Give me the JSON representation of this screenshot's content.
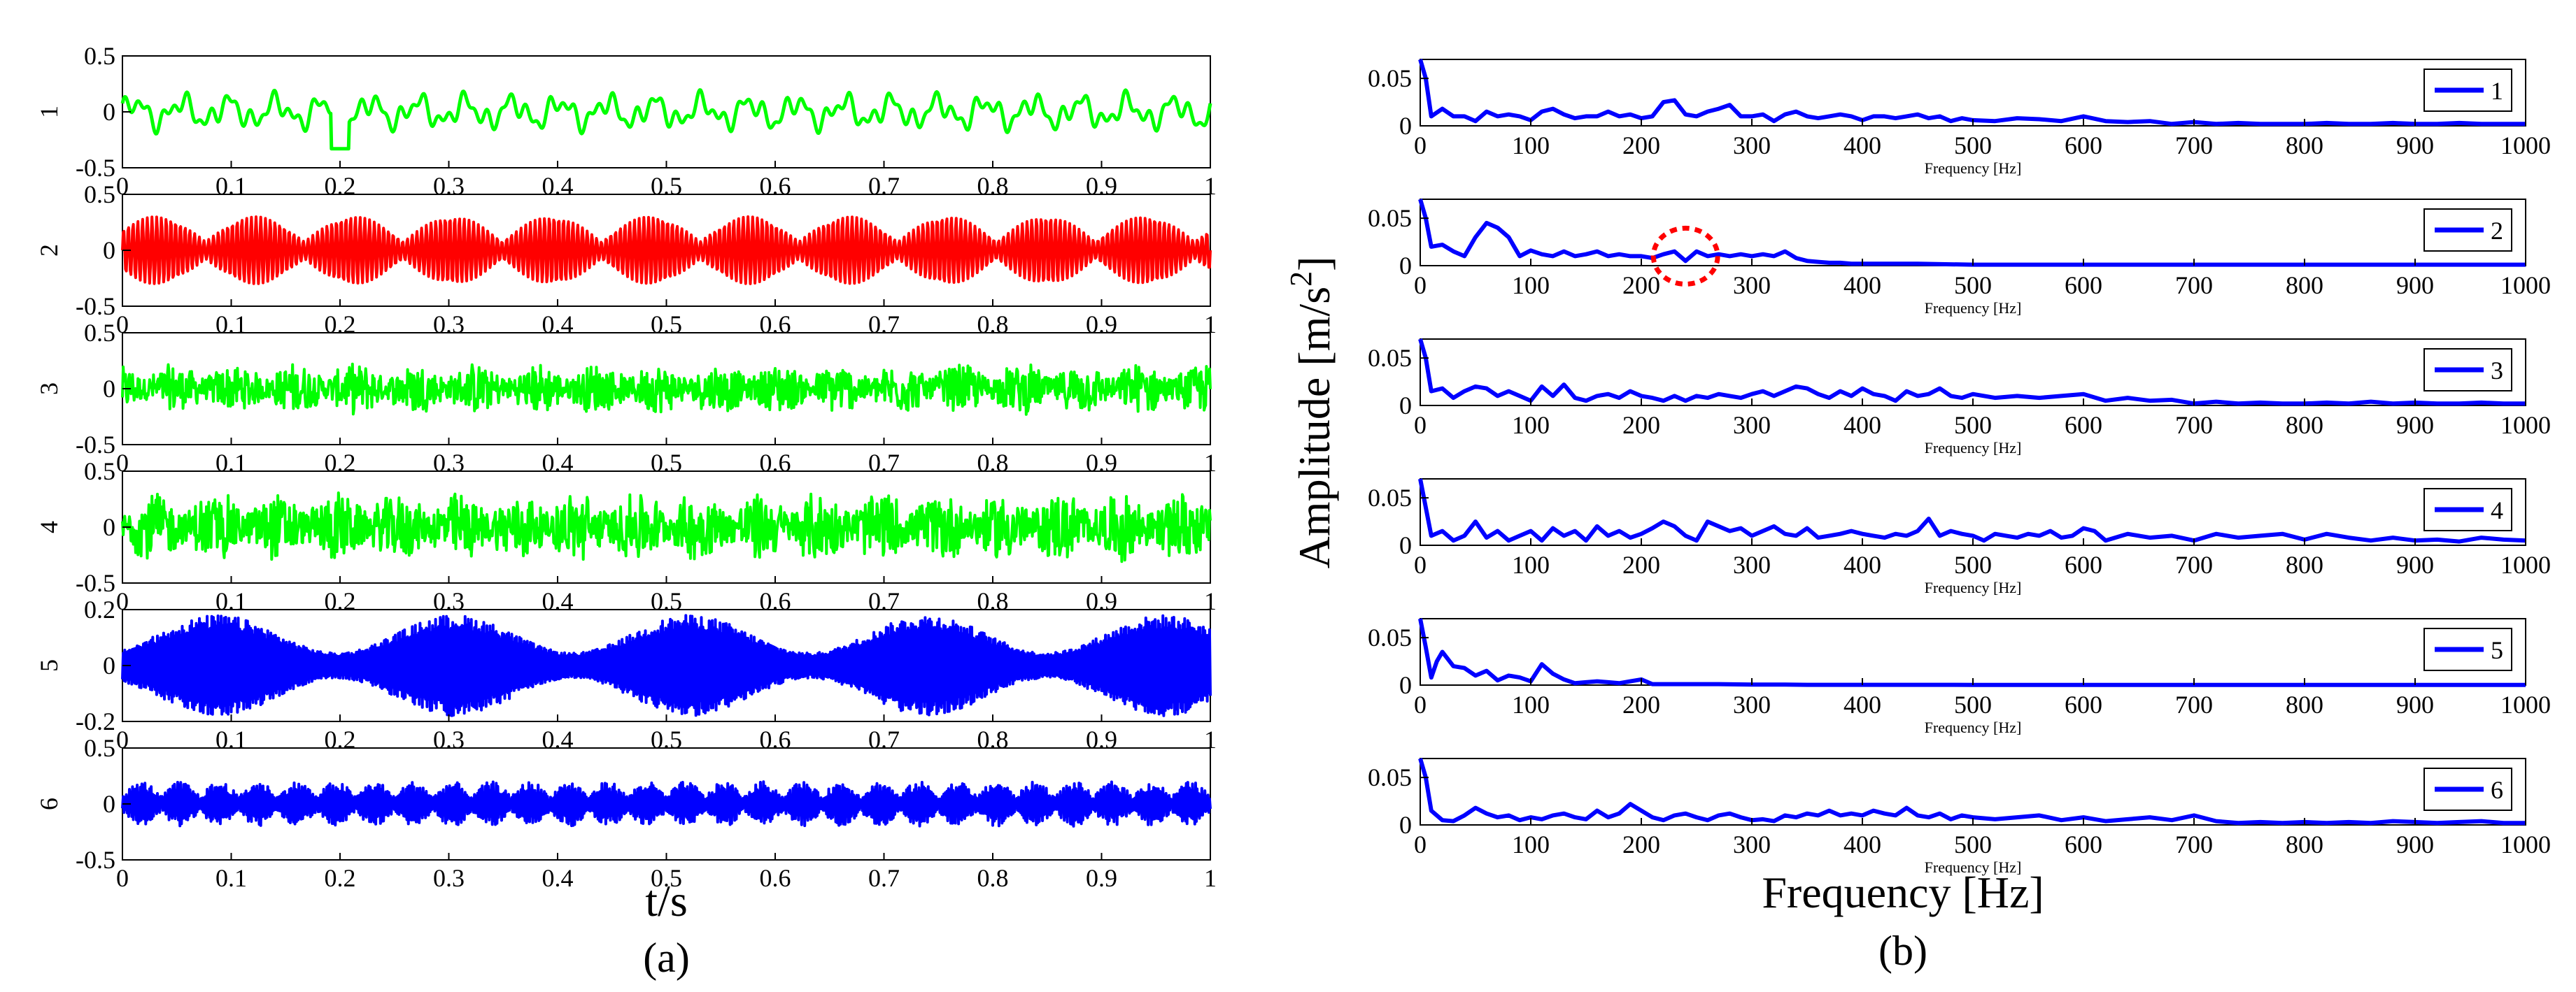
{
  "chart_data": [
    {
      "id": "a",
      "type": "line",
      "caption": "(a)",
      "xlabel": "t/s",
      "xlim": [
        0,
        1
      ],
      "x_ticks": [
        "0",
        "0.1",
        "0.2",
        "0.3",
        "0.4",
        "0.5",
        "0.6",
        "0.7",
        "0.8",
        "0.9",
        "1"
      ],
      "signals": [
        {
          "name": "1",
          "color": "#00ff00",
          "ylim": [
            -0.5,
            0.5
          ],
          "y_ticks": [
            "0.5",
            "0",
            "-0.5"
          ],
          "kind": "lowfreq",
          "amplitude": 0.2
        },
        {
          "name": "2",
          "color": "#ff0000",
          "ylim": [
            -0.5,
            0.5
          ],
          "y_ticks": [
            "0.5",
            "0",
            "-0.5"
          ],
          "kind": "beating",
          "amplitude": 0.3
        },
        {
          "name": "3",
          "color": "#00ff00",
          "ylim": [
            -0.5,
            0.5
          ],
          "y_ticks": [
            "0.5",
            "0",
            "-0.5"
          ],
          "kind": "noise",
          "amplitude": 0.24
        },
        {
          "name": "4",
          "color": "#00ff00",
          "ylim": [
            -0.5,
            0.5
          ],
          "y_ticks": [
            "0.5",
            "0",
            "-0.5"
          ],
          "kind": "noise",
          "amplitude": 0.34
        },
        {
          "name": "5",
          "color": "#0000ff",
          "ylim": [
            -0.2,
            0.2
          ],
          "y_ticks": [
            "0.2",
            "0",
            "-0.2"
          ],
          "kind": "envelope",
          "amplitude": 0.18
        },
        {
          "name": "6",
          "color": "#0000ff",
          "ylim": [
            -0.5,
            0.5
          ],
          "y_ticks": [
            "0.5",
            "0",
            "-0.5"
          ],
          "kind": "bursts",
          "amplitude": 0.2
        }
      ]
    },
    {
      "id": "b",
      "type": "line",
      "caption": "(b)",
      "xlabel": "Frequency [Hz]",
      "panel_xlabel": "Frequency [Hz]",
      "ylabel": "Amplitude [m/s",
      "ylabel_sup": "2",
      "ylabel_close": "]",
      "xlim": [
        0,
        1000
      ],
      "ylim": [
        0,
        0.07
      ],
      "x_ticks": [
        "0",
        "100",
        "200",
        "300",
        "400",
        "500",
        "600",
        "700",
        "800",
        "900",
        "1000"
      ],
      "y_ticks": [
        "0.05",
        "0"
      ],
      "series": [
        {
          "name": "1",
          "color": "#0000ff",
          "x": [
            0,
            5,
            10,
            20,
            30,
            40,
            50,
            60,
            70,
            80,
            90,
            100,
            110,
            120,
            130,
            140,
            150,
            160,
            170,
            180,
            190,
            200,
            210,
            220,
            230,
            240,
            250,
            260,
            270,
            280,
            290,
            300,
            310,
            320,
            330,
            340,
            350,
            360,
            370,
            380,
            390,
            400,
            410,
            420,
            430,
            440,
            450,
            460,
            470,
            480,
            490,
            500,
            520,
            540,
            560,
            580,
            600,
            620,
            640,
            660,
            680,
            700,
            720,
            740,
            760,
            780,
            800,
            820,
            840,
            860,
            880,
            900,
            920,
            940,
            960,
            980,
            1000
          ],
          "y": [
            0.07,
            0.05,
            0.01,
            0.018,
            0.01,
            0.01,
            0.005,
            0.015,
            0.01,
            0.012,
            0.01,
            0.006,
            0.015,
            0.018,
            0.012,
            0.008,
            0.01,
            0.01,
            0.015,
            0.01,
            0.012,
            0.008,
            0.01,
            0.025,
            0.027,
            0.012,
            0.01,
            0.015,
            0.018,
            0.022,
            0.01,
            0.01,
            0.012,
            0.005,
            0.012,
            0.015,
            0.01,
            0.008,
            0.01,
            0.012,
            0.01,
            0.006,
            0.01,
            0.01,
            0.008,
            0.01,
            0.012,
            0.008,
            0.01,
            0.005,
            0.008,
            0.006,
            0.005,
            0.008,
            0.007,
            0.005,
            0.01,
            0.005,
            0.004,
            0.005,
            0.002,
            0.004,
            0.002,
            0.003,
            0.002,
            0.002,
            0.002,
            0.003,
            0.002,
            0.002,
            0.003,
            0.002,
            0.002,
            0.003,
            0.002,
            0.002,
            0.002
          ]
        },
        {
          "name": "2",
          "color": "#0000ff",
          "x": [
            0,
            5,
            10,
            20,
            30,
            40,
            50,
            60,
            70,
            80,
            90,
            100,
            110,
            120,
            130,
            140,
            150,
            160,
            170,
            180,
            190,
            200,
            210,
            220,
            230,
            240,
            250,
            260,
            270,
            280,
            290,
            300,
            310,
            320,
            330,
            340,
            350,
            360,
            370,
            380,
            390,
            400,
            450,
            500,
            550,
            600,
            650,
            700,
            750,
            800,
            850,
            900,
            950,
            1000
          ],
          "y": [
            0.07,
            0.05,
            0.02,
            0.022,
            0.015,
            0.01,
            0.03,
            0.045,
            0.04,
            0.03,
            0.01,
            0.016,
            0.012,
            0.01,
            0.015,
            0.01,
            0.012,
            0.015,
            0.01,
            0.012,
            0.01,
            0.01,
            0.008,
            0.012,
            0.015,
            0.005,
            0.015,
            0.01,
            0.012,
            0.01,
            0.012,
            0.01,
            0.012,
            0.01,
            0.015,
            0.008,
            0.005,
            0.004,
            0.003,
            0.003,
            0.002,
            0.002,
            0.002,
            0.001,
            0.001,
            0.001,
            0.001,
            0.001,
            0.001,
            0.001,
            0.001,
            0.001,
            0.001,
            0.001
          ]
        },
        {
          "name": "3",
          "color": "#0000ff",
          "x": [
            0,
            5,
            10,
            20,
            30,
            40,
            50,
            60,
            70,
            80,
            90,
            100,
            110,
            120,
            130,
            140,
            150,
            160,
            170,
            180,
            190,
            200,
            210,
            220,
            230,
            240,
            250,
            260,
            270,
            280,
            290,
            300,
            310,
            320,
            330,
            340,
            350,
            360,
            370,
            380,
            390,
            400,
            410,
            420,
            430,
            440,
            450,
            460,
            470,
            480,
            490,
            500,
            520,
            540,
            560,
            580,
            600,
            620,
            640,
            660,
            680,
            700,
            720,
            740,
            760,
            780,
            800,
            820,
            840,
            860,
            880,
            900,
            920,
            940,
            960,
            980,
            1000
          ],
          "y": [
            0.07,
            0.05,
            0.015,
            0.018,
            0.008,
            0.015,
            0.02,
            0.018,
            0.01,
            0.015,
            0.01,
            0.005,
            0.02,
            0.01,
            0.022,
            0.008,
            0.005,
            0.01,
            0.012,
            0.008,
            0.015,
            0.01,
            0.008,
            0.005,
            0.01,
            0.005,
            0.01,
            0.008,
            0.012,
            0.01,
            0.008,
            0.012,
            0.015,
            0.01,
            0.015,
            0.02,
            0.018,
            0.012,
            0.008,
            0.015,
            0.01,
            0.018,
            0.012,
            0.01,
            0.005,
            0.015,
            0.01,
            0.012,
            0.018,
            0.01,
            0.008,
            0.012,
            0.008,
            0.01,
            0.008,
            0.01,
            0.012,
            0.005,
            0.008,
            0.005,
            0.006,
            0.002,
            0.004,
            0.002,
            0.003,
            0.002,
            0.002,
            0.003,
            0.002,
            0.004,
            0.002,
            0.003,
            0.002,
            0.002,
            0.003,
            0.002,
            0.002
          ]
        },
        {
          "name": "4",
          "color": "#0000ff",
          "x": [
            0,
            5,
            10,
            20,
            30,
            40,
            50,
            60,
            70,
            80,
            90,
            100,
            110,
            120,
            130,
            140,
            150,
            160,
            170,
            180,
            190,
            200,
            210,
            220,
            230,
            240,
            250,
            260,
            270,
            280,
            290,
            300,
            310,
            320,
            330,
            340,
            350,
            360,
            370,
            380,
            390,
            400,
            410,
            420,
            430,
            440,
            450,
            460,
            470,
            480,
            490,
            500,
            510,
            520,
            530,
            540,
            550,
            560,
            570,
            580,
            590,
            600,
            610,
            620,
            640,
            660,
            680,
            700,
            720,
            740,
            760,
            780,
            800,
            820,
            840,
            860,
            880,
            900,
            920,
            940,
            960,
            980,
            1000
          ],
          "y": [
            0.07,
            0.04,
            0.01,
            0.015,
            0.005,
            0.01,
            0.025,
            0.008,
            0.015,
            0.005,
            0.01,
            0.015,
            0.005,
            0.018,
            0.01,
            0.015,
            0.005,
            0.02,
            0.01,
            0.015,
            0.008,
            0.012,
            0.018,
            0.025,
            0.02,
            0.01,
            0.005,
            0.025,
            0.02,
            0.015,
            0.018,
            0.01,
            0.015,
            0.02,
            0.012,
            0.01,
            0.018,
            0.008,
            0.01,
            0.012,
            0.015,
            0.012,
            0.01,
            0.008,
            0.012,
            0.01,
            0.015,
            0.028,
            0.01,
            0.015,
            0.012,
            0.01,
            0.005,
            0.012,
            0.01,
            0.008,
            0.012,
            0.01,
            0.015,
            0.008,
            0.01,
            0.018,
            0.015,
            0.005,
            0.012,
            0.008,
            0.01,
            0.005,
            0.012,
            0.008,
            0.01,
            0.012,
            0.006,
            0.012,
            0.008,
            0.005,
            0.008,
            0.005,
            0.006,
            0.004,
            0.008,
            0.006,
            0.005
          ]
        },
        {
          "name": "5",
          "color": "#0000ff",
          "x": [
            0,
            5,
            10,
            15,
            20,
            30,
            40,
            50,
            60,
            70,
            80,
            90,
            100,
            110,
            120,
            130,
            140,
            150,
            160,
            170,
            180,
            190,
            200,
            210,
            220,
            230,
            250,
            270,
            300,
            330,
            350,
            400,
            500,
            600,
            700,
            800,
            900,
            1000
          ],
          "y": [
            0.07,
            0.04,
            0.008,
            0.025,
            0.035,
            0.02,
            0.018,
            0.01,
            0.015,
            0.005,
            0.01,
            0.008,
            0.004,
            0.022,
            0.012,
            0.006,
            0.002,
            0.003,
            0.004,
            0.003,
            0.002,
            0.004,
            0.006,
            0.001,
            0.001,
            0.001,
            0.001,
            0.001,
            0.0005,
            0.0005,
            0.0003,
            0.0003,
            0.0002,
            0.0002,
            0.0002,
            0.0002,
            0.0002,
            0.0002
          ]
        },
        {
          "name": "6",
          "color": "#0000ff",
          "x": [
            0,
            5,
            10,
            20,
            30,
            40,
            50,
            60,
            70,
            80,
            90,
            100,
            110,
            120,
            130,
            140,
            150,
            160,
            170,
            180,
            190,
            200,
            210,
            220,
            230,
            240,
            250,
            260,
            270,
            280,
            290,
            300,
            310,
            320,
            330,
            340,
            350,
            360,
            370,
            380,
            390,
            400,
            410,
            420,
            430,
            440,
            450,
            460,
            470,
            480,
            490,
            500,
            520,
            540,
            560,
            580,
            600,
            620,
            640,
            660,
            680,
            700,
            720,
            740,
            760,
            780,
            800,
            820,
            840,
            860,
            880,
            900,
            920,
            940,
            960,
            980,
            1000
          ],
          "y": [
            0.07,
            0.05,
            0.015,
            0.005,
            0.004,
            0.01,
            0.018,
            0.012,
            0.008,
            0.01,
            0.005,
            0.008,
            0.006,
            0.01,
            0.012,
            0.008,
            0.006,
            0.015,
            0.008,
            0.012,
            0.022,
            0.015,
            0.008,
            0.005,
            0.01,
            0.012,
            0.008,
            0.005,
            0.01,
            0.012,
            0.008,
            0.005,
            0.006,
            0.004,
            0.01,
            0.008,
            0.012,
            0.01,
            0.015,
            0.01,
            0.012,
            0.01,
            0.015,
            0.012,
            0.01,
            0.018,
            0.01,
            0.008,
            0.012,
            0.006,
            0.01,
            0.008,
            0.006,
            0.008,
            0.01,
            0.005,
            0.008,
            0.004,
            0.006,
            0.008,
            0.005,
            0.01,
            0.004,
            0.002,
            0.003,
            0.002,
            0.003,
            0.002,
            0.003,
            0.002,
            0.004,
            0.003,
            0.002,
            0.003,
            0.004,
            0.002,
            0.002
          ]
        }
      ],
      "annotation": {
        "type": "dashed-circle",
        "color": "#ff0000",
        "panel": "2",
        "center_hz": 240,
        "center_value": 0.01
      }
    }
  ]
}
